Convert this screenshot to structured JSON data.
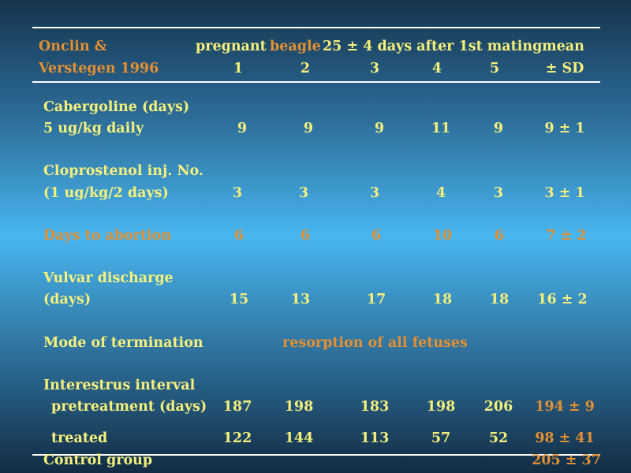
{
  "header": {
    "source_line1": "Onclin &",
    "source_line2": "Verstegen 1996",
    "title_pregnant": "pregnant",
    "title_beagle": "beagle",
    "title_rest": "25 ± 4 days after 1st mating",
    "mean": "mean",
    "sd": "± SD",
    "cols": [
      "1",
      "2",
      "3",
      "4",
      "5"
    ]
  },
  "rows": {
    "cabergoline": {
      "label1": "Cabergoline (days)",
      "label2": "5 ug/kg daily",
      "values": [
        "9",
        "9",
        "9",
        "11",
        "9"
      ],
      "mean": "9 ± 1"
    },
    "cloprostenol": {
      "label1": "Cloprostenol inj. No.",
      "label2": "(1 ug/kg/2 days)",
      "values": [
        "3",
        "3",
        "3",
        "4",
        "3"
      ],
      "mean": "3 ± 1"
    },
    "abortion": {
      "label": "Days to abortion",
      "values": [
        "6",
        "6",
        "6",
        "10",
        "6"
      ],
      "mean": "7 ± 2"
    },
    "vulvar": {
      "label1": "Vulvar discharge",
      "label2": "(days)",
      "values": [
        "15",
        "13",
        "17",
        "18",
        "18"
      ],
      "mean": "16 ± 2"
    },
    "mode": {
      "label": "Mode of termination",
      "value": "resorption of all fetuses"
    },
    "interestrus": {
      "label": "Interestrus interval",
      "pre_label": "pretreatment (days)",
      "pre_values": [
        "187",
        "198",
        "183",
        "198",
        "206"
      ],
      "pre_mean": "194 ± 9",
      "treated_label": "treated",
      "treated_values": [
        "122",
        "144",
        "113",
        "57",
        "52"
      ],
      "treated_mean": "98 ± 41"
    },
    "control": {
      "label": "Control group",
      "mean": "205 ± 37"
    }
  },
  "colors": {
    "text_yellow": "#f4f07c",
    "text_orange": "#e39033",
    "rule": "#ffffff"
  }
}
